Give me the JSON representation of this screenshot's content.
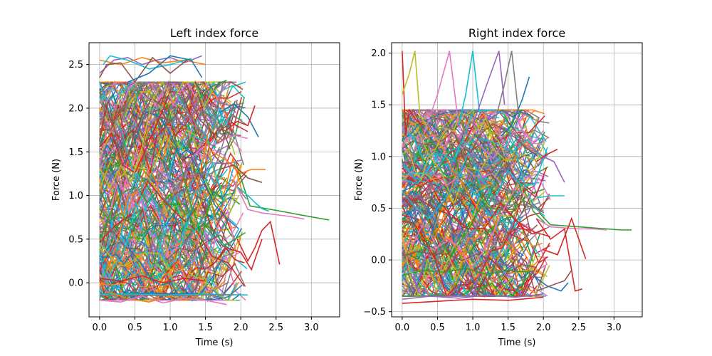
{
  "chart_data": [
    {
      "type": "line",
      "title": "Left index force",
      "xlabel": "Time (s)",
      "ylabel": "Force (N)",
      "xlim": [
        -0.15,
        3.4
      ],
      "ylim": [
        -0.39,
        2.75
      ],
      "xticks": [
        0.0,
        0.5,
        1.0,
        1.5,
        2.0,
        2.5,
        3.0
      ],
      "yticks": [
        0.0,
        0.5,
        1.0,
        1.5,
        2.0,
        2.5
      ],
      "xtick_labels": [
        "0.0",
        "0.5",
        "1.0",
        "1.5",
        "2.0",
        "2.5",
        "3.0"
      ],
      "ytick_labels": [
        "0.0",
        "0.5",
        "1.0",
        "1.5",
        "2.0",
        "2.5"
      ],
      "grid": true,
      "series": [
        {
          "color": "#2ca02c",
          "x": [
            1.93,
            2.13,
            2.28,
            2.5,
            2.7,
            2.9,
            3.1,
            3.25
          ],
          "y": [
            1.38,
            0.88,
            0.86,
            0.83,
            0.8,
            0.77,
            0.74,
            0.72
          ]
        },
        {
          "color": "#e377c2",
          "x": [
            1.9,
            2.1,
            2.3,
            2.5,
            2.7,
            2.9
          ],
          "y": [
            1.18,
            0.84,
            0.8,
            0.78,
            0.76,
            0.73
          ]
        },
        {
          "color": "#17becf",
          "x": [
            1.95,
            2.1,
            2.2,
            2.3,
            2.4
          ],
          "y": [
            1.1,
            1.0,
            0.92,
            0.85,
            0.82
          ]
        },
        {
          "color": "#d62728",
          "x": [
            1.95,
            2.1,
            2.2,
            2.3,
            2.42,
            2.55
          ],
          "y": [
            0.5,
            0.25,
            0.4,
            0.6,
            0.7,
            0.21
          ]
        },
        {
          "color": "#d62728",
          "x": [
            1.6,
            1.8,
            2.0,
            2.15,
            2.3
          ],
          "y": [
            0.2,
            0.4,
            0.35,
            0.15,
            0.5
          ]
        },
        {
          "color": "#1f77b4",
          "x": [
            1.7,
            1.9,
            2.1,
            2.25
          ],
          "y": [
            1.95,
            2.05,
            1.9,
            1.67
          ]
        },
        {
          "color": "#d62728",
          "x": [
            1.8,
            1.95,
            2.1,
            2.2
          ],
          "y": [
            1.75,
            1.85,
            1.8,
            2.03
          ]
        },
        {
          "color": "#ff7f0e",
          "x": [
            1.6,
            1.8,
            2.0,
            2.15,
            2.35
          ],
          "y": [
            1.5,
            1.4,
            1.25,
            1.3,
            1.3
          ]
        },
        {
          "color": "#8c564b",
          "x": [
            1.7,
            1.9,
            2.1,
            2.3
          ],
          "y": [
            1.3,
            1.35,
            1.2,
            1.15
          ]
        },
        {
          "color": "#2ca02c",
          "x": [
            1.4,
            1.6,
            1.8
          ],
          "y": [
            2.1,
            2.25,
            2.32
          ]
        },
        {
          "color": "#9467bd",
          "x": [
            0.0,
            0.2,
            0.4,
            0.6,
            0.8,
            1.0,
            1.2,
            1.45
          ],
          "y": [
            2.4,
            2.55,
            2.58,
            2.5,
            2.55,
            2.58,
            2.52,
            2.6
          ]
        },
        {
          "color": "#ff7f0e",
          "x": [
            0.0,
            0.3,
            0.6,
            0.9,
            1.2,
            1.5
          ],
          "y": [
            2.55,
            2.5,
            2.58,
            2.52,
            2.55,
            2.5
          ]
        },
        {
          "color": "#17becf",
          "x": [
            0.05,
            0.15,
            0.4,
            0.7,
            1.0,
            1.3
          ],
          "y": [
            2.5,
            2.6,
            2.55,
            2.45,
            2.5,
            2.57
          ]
        },
        {
          "color": "#8c564b",
          "x": [
            0.0,
            0.1,
            0.3,
            0.5,
            0.75,
            1.0,
            1.25
          ],
          "y": [
            2.35,
            2.5,
            2.52,
            2.3,
            2.58,
            2.4,
            2.56
          ]
        },
        {
          "color": "#1f77b4",
          "x": [
            0.4,
            0.7,
            1.0,
            1.3,
            1.45
          ],
          "y": [
            2.3,
            2.4,
            2.6,
            2.55,
            2.35
          ]
        },
        {
          "color": "#1f77b4",
          "x": [
            0.0,
            0.2,
            0.5,
            0.8,
            1.1,
            1.4
          ],
          "y": [
            -0.12,
            -0.13,
            -0.12,
            -0.12,
            -0.13,
            -0.12
          ]
        },
        {
          "color": "#17becf",
          "x": [
            0.0,
            0.5,
            1.0,
            1.5,
            2.1
          ],
          "y": [
            -0.13,
            -0.13,
            -0.14,
            -0.13,
            -0.14
          ]
        },
        {
          "color": "#7f7f7f",
          "x": [
            0.0,
            0.5,
            1.0,
            1.5,
            1.9
          ],
          "y": [
            -0.15,
            -0.14,
            -0.15,
            -0.14,
            -0.14
          ]
        },
        {
          "color": "#ff7f0e",
          "x": [
            0.1,
            0.4,
            0.7,
            1.0,
            1.3
          ],
          "y": [
            -0.1,
            -0.18,
            -0.22,
            -0.15,
            -0.2
          ]
        },
        {
          "color": "#e377c2",
          "x": [
            0.0,
            0.3,
            0.6,
            0.9,
            1.2,
            1.5,
            1.8
          ],
          "y": [
            -0.2,
            -0.22,
            -0.15,
            -0.23,
            -0.18,
            -0.2,
            -0.25
          ]
        },
        {
          "color": "#d62728",
          "x": [
            0.0,
            0.3,
            0.6,
            0.9,
            1.2,
            1.5
          ],
          "y": [
            0.05,
            0.02,
            0.08,
            0.0,
            0.05,
            0.02
          ]
        }
      ]
    },
    {
      "type": "line",
      "title": "Right index force",
      "xlabel": "Time (s)",
      "ylabel": "Force (N)",
      "xlim": [
        -0.15,
        3.4
      ],
      "ylim": [
        -0.55,
        2.1
      ],
      "xticks": [
        0.0,
        0.5,
        1.0,
        1.5,
        2.0,
        2.5,
        3.0
      ],
      "yticks": [
        -0.5,
        0.0,
        0.5,
        1.0,
        1.5,
        2.0
      ],
      "xtick_labels": [
        "0.0",
        "0.5",
        "1.0",
        "1.5",
        "2.0",
        "2.5",
        "3.0"
      ],
      "ytick_labels": [
        "−0.5",
        "0.0",
        "0.5",
        "1.0",
        "1.5",
        "2.0"
      ],
      "grid": true,
      "series": [
        {
          "color": "#2ca02c",
          "x": [
            1.95,
            2.1,
            2.3,
            2.5,
            2.7,
            2.9,
            3.1,
            3.25
          ],
          "y": [
            0.45,
            0.34,
            0.33,
            0.32,
            0.31,
            0.3,
            0.29,
            0.29
          ]
        },
        {
          "color": "#e377c2",
          "x": [
            1.9,
            2.1,
            2.3,
            2.5,
            2.7,
            2.9
          ],
          "y": [
            0.4,
            0.32,
            0.31,
            0.3,
            0.3,
            0.29
          ]
        },
        {
          "color": "#d62728",
          "x": [
            1.9,
            2.1,
            2.3,
            2.45,
            2.55
          ],
          "y": [
            0.4,
            0.2,
            0.3,
            -0.3,
            -0.28
          ]
        },
        {
          "color": "#d62728",
          "x": [
            2.0,
            2.2,
            2.4,
            2.6
          ],
          "y": [
            0.1,
            0.05,
            0.4,
            0.01
          ]
        },
        {
          "color": "#9467bd",
          "x": [
            1.8,
            2.0,
            2.15,
            2.3
          ],
          "y": [
            1.1,
            1.0,
            0.95,
            0.75
          ]
        },
        {
          "color": "#d62728",
          "x": [
            1.9,
            2.05,
            2.2
          ],
          "y": [
            0.95,
            1.02,
            1.07
          ]
        },
        {
          "color": "#17becf",
          "x": [
            1.9,
            2.1,
            2.3
          ],
          "y": [
            0.6,
            0.62,
            0.62
          ]
        },
        {
          "color": "#1f77b4",
          "x": [
            1.85,
            2.05,
            2.25,
            2.35
          ],
          "y": [
            -0.15,
            -0.25,
            -0.3,
            -0.22
          ]
        },
        {
          "color": "#8c564b",
          "x": [
            1.9,
            2.1,
            2.3,
            2.4
          ],
          "y": [
            -0.3,
            -0.25,
            -0.2,
            -0.1
          ]
        },
        {
          "color": "#d62728",
          "x": [
            0.0,
            0.05,
            0.1,
            0.2,
            0.3
          ],
          "y": [
            2.02,
            1.2,
            1.45,
            1.35,
            1.3
          ]
        },
        {
          "color": "#bcbd22",
          "x": [
            0.0,
            0.1,
            0.18,
            0.25,
            0.35
          ],
          "y": [
            1.6,
            1.8,
            2.02,
            1.4,
            1.3
          ]
        },
        {
          "color": "#e377c2",
          "x": [
            0.3,
            0.5,
            0.67,
            0.8
          ],
          "y": [
            1.2,
            1.6,
            2.02,
            1.3
          ]
        },
        {
          "color": "#17becf",
          "x": [
            0.8,
            0.9,
            1.0,
            1.1
          ],
          "y": [
            1.3,
            1.6,
            2.02,
            1.4
          ]
        },
        {
          "color": "#9467bd",
          "x": [
            1.0,
            1.2,
            1.37,
            1.45
          ],
          "y": [
            1.3,
            1.7,
            2.02,
            1.5
          ]
        },
        {
          "color": "#7f7f7f",
          "x": [
            1.3,
            1.45,
            1.55,
            1.65
          ],
          "y": [
            1.3,
            1.7,
            2.02,
            1.4
          ]
        },
        {
          "color": "#1f77b4",
          "x": [
            1.4,
            1.55,
            1.7,
            1.8
          ],
          "y": [
            1.2,
            1.3,
            1.55,
            1.77
          ]
        },
        {
          "color": "#d62728",
          "x": [
            0.0,
            0.5,
            1.0,
            1.5,
            2.0
          ],
          "y": [
            -0.42,
            -0.4,
            -0.38,
            -0.39,
            -0.36
          ]
        },
        {
          "color": "#9467bd",
          "x": [
            0.0,
            0.4,
            0.8,
            1.2,
            1.6,
            2.0
          ],
          "y": [
            -0.38,
            -0.35,
            -0.37,
            -0.34,
            -0.36,
            -0.33
          ]
        },
        {
          "color": "#2ca02c",
          "x": [
            0.0,
            0.3,
            0.6,
            0.9,
            1.2,
            1.5,
            1.8
          ],
          "y": [
            -0.15,
            -0.1,
            -0.12,
            -0.08,
            -0.14,
            -0.1,
            -0.12
          ]
        }
      ]
    }
  ]
}
